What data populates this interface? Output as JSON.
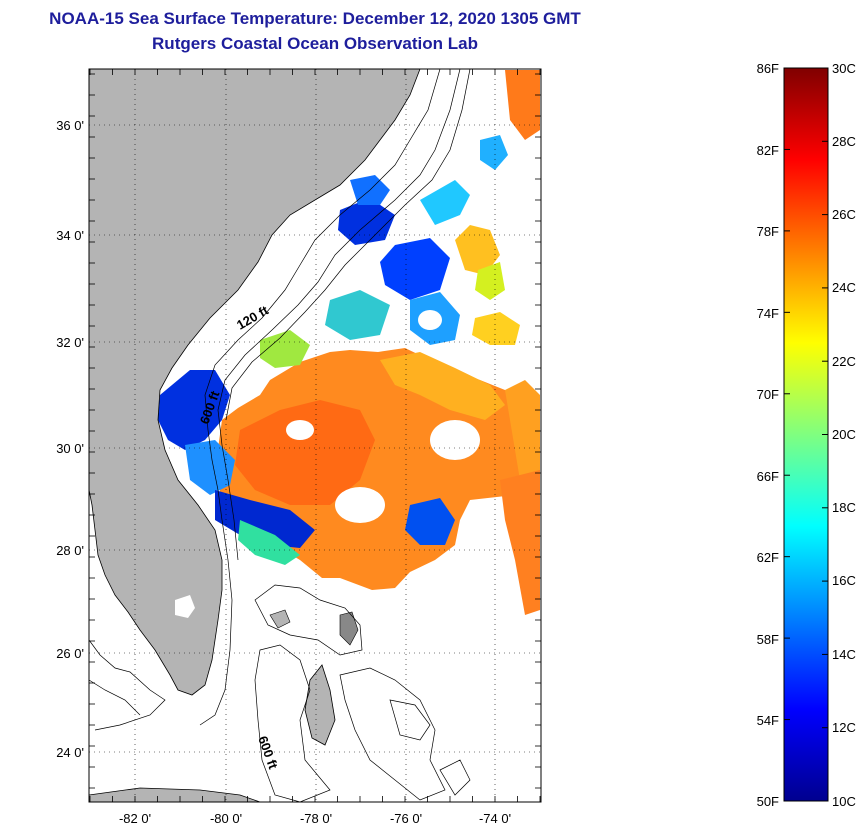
{
  "header": {
    "title": "NOAA-15 Sea Surface Temperature:  December 12, 2020 1305 GMT",
    "subtitle": "Rutgers Coastal Ocean Observation Lab"
  },
  "map": {
    "lat_labels": [
      "36 0'",
      "34 0'",
      "32 0'",
      "30 0'",
      "28 0'",
      "26 0'",
      "24 0'"
    ],
    "lon_labels": [
      "-82 0'",
      "-80 0'",
      "-78 0'",
      "-76 0'",
      "-74 0'"
    ],
    "contour_labels": [
      "120 ft",
      "600 ft",
      "600 ft"
    ],
    "land_color": "#b4b4b4",
    "grid": "dotted"
  },
  "colorbar": {
    "fahrenheit_labels": [
      "86F",
      "82F",
      "78F",
      "74F",
      "70F",
      "66F",
      "62F",
      "58F",
      "54F",
      "50F"
    ],
    "celsius_labels": [
      "30C",
      "28C",
      "26C",
      "24C",
      "22C",
      "20C",
      "18C",
      "16C",
      "14C",
      "12C",
      "10C"
    ],
    "colormap": "jet",
    "range_c": [
      10,
      30
    ],
    "range_f": [
      50,
      86
    ]
  }
}
